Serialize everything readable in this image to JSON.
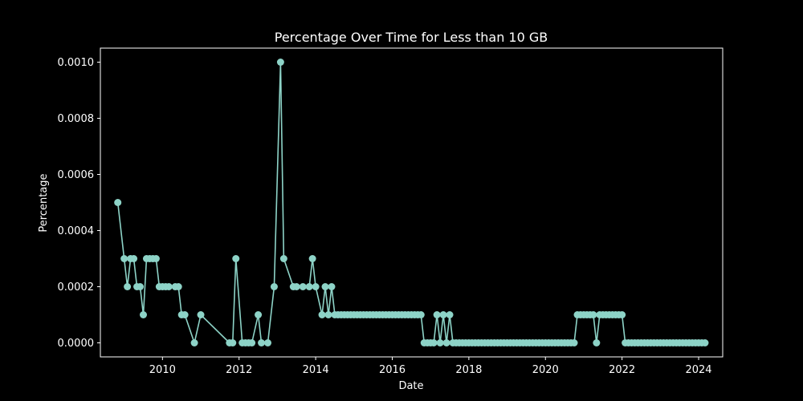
{
  "chart_data": {
    "type": "line",
    "title": "Percentage Over Time for Less than 10 GB",
    "xlabel": "Date",
    "ylabel": "Percentage",
    "xlim": [
      "2008-06-01",
      "2024-09-01"
    ],
    "ylim": [
      -5e-05,
      0.00105
    ],
    "x_ticks": [
      "2010",
      "2012",
      "2014",
      "2016",
      "2018",
      "2020",
      "2022",
      "2024"
    ],
    "y_ticks": [
      "0.0000",
      "0.0002",
      "0.0004",
      "0.0006",
      "0.0008",
      "0.0010"
    ],
    "grid": false,
    "legend": "none",
    "colors": {
      "background": "#000000",
      "foreground": "#ffffff",
      "line": "#8dd3c7"
    },
    "series": [
      {
        "x": [
          "2008-11",
          "2009-01",
          "2009-02",
          "2009-03",
          "2009-04",
          "2009-05",
          "2009-06",
          "2009-07",
          "2009-08",
          "2009-09",
          "2009-10",
          "2009-11",
          "2009-12",
          "2010-01",
          "2010-02",
          "2010-03",
          "2010-05",
          "2010-06",
          "2010-07",
          "2010-08",
          "2010-11",
          "2011-01",
          "2011-10",
          "2011-11",
          "2011-12",
          "2012-02",
          "2012-03",
          "2012-04",
          "2012-05",
          "2012-07",
          "2012-08",
          "2012-10",
          "2012-12",
          "2013-02",
          "2013-03",
          "2013-06",
          "2013-07",
          "2013-09",
          "2013-11",
          "2013-12",
          "2014-01",
          "2014-03",
          "2014-04",
          "2014-05",
          "2014-06",
          "2014-07",
          "2014-08",
          "2014-09",
          "2014-10",
          "2014-11",
          "2014-12",
          "2015-01",
          "2015-02",
          "2015-03",
          "2015-04",
          "2015-05",
          "2015-06",
          "2015-07",
          "2015-08",
          "2015-09",
          "2015-10",
          "2015-11",
          "2015-12",
          "2016-01",
          "2016-02",
          "2016-03",
          "2016-04",
          "2016-05",
          "2016-06",
          "2016-07",
          "2016-08",
          "2016-09",
          "2016-10",
          "2016-11",
          "2016-12",
          "2017-01",
          "2017-02",
          "2017-03",
          "2017-04",
          "2017-05",
          "2017-06",
          "2017-07",
          "2017-08",
          "2017-09",
          "2017-10",
          "2017-11",
          "2017-12",
          "2018-01",
          "2018-02",
          "2018-03",
          "2018-04",
          "2018-05",
          "2018-06",
          "2018-07",
          "2018-08",
          "2018-09",
          "2018-10",
          "2018-11",
          "2018-12",
          "2019-01",
          "2019-02",
          "2019-03",
          "2019-04",
          "2019-05",
          "2019-06",
          "2019-07",
          "2019-08",
          "2019-09",
          "2019-10",
          "2019-11",
          "2019-12",
          "2020-01",
          "2020-02",
          "2020-03",
          "2020-04",
          "2020-05",
          "2020-06",
          "2020-07",
          "2020-08",
          "2020-09",
          "2020-10",
          "2020-11",
          "2020-12",
          "2021-01",
          "2021-02",
          "2021-03",
          "2021-04",
          "2021-05",
          "2021-06",
          "2021-07",
          "2021-08",
          "2021-09",
          "2021-10",
          "2021-11",
          "2021-12",
          "2022-01",
          "2022-02",
          "2022-03",
          "2022-04",
          "2022-05",
          "2022-06",
          "2022-07",
          "2022-08",
          "2022-09",
          "2022-10",
          "2022-11",
          "2022-12",
          "2023-01",
          "2023-02",
          "2023-03",
          "2023-04",
          "2023-05",
          "2023-06",
          "2023-07",
          "2023-08",
          "2023-09",
          "2023-10",
          "2023-11",
          "2023-12",
          "2024-01",
          "2024-02",
          "2024-03"
        ],
        "y": [
          0.0005,
          0.0003,
          0.0002,
          0.0003,
          0.0003,
          0.0002,
          0.0002,
          0.0001,
          0.0003,
          0.0003,
          0.0003,
          0.0003,
          0.0002,
          0.0002,
          0.0002,
          0.0002,
          0.0002,
          0.0002,
          0.0001,
          0.0001,
          0.0,
          0.0001,
          0.0,
          0.0,
          0.0003,
          0.0,
          0.0,
          0.0,
          0.0,
          0.0001,
          0.0,
          0.0,
          0.0002,
          0.001,
          0.0003,
          0.0002,
          0.0002,
          0.0002,
          0.0002,
          0.0003,
          0.0002,
          0.0001,
          0.0002,
          0.0001,
          0.0002,
          0.0001,
          0.0001,
          0.0001,
          0.0001,
          0.0001,
          0.0001,
          0.0001,
          0.0001,
          0.0001,
          0.0001,
          0.0001,
          0.0001,
          0.0001,
          0.0001,
          0.0001,
          0.0001,
          0.0001,
          0.0001,
          0.0001,
          0.0001,
          0.0001,
          0.0001,
          0.0001,
          0.0001,
          0.0001,
          0.0001,
          0.0001,
          0.0001,
          0.0,
          0.0,
          0.0,
          0.0,
          0.0001,
          0.0,
          0.0001,
          0.0,
          0.0001,
          0.0,
          0.0,
          0.0,
          0.0,
          0.0,
          0.0,
          0.0,
          0.0,
          0.0,
          0.0,
          0.0,
          0.0,
          0.0,
          0.0,
          0.0,
          0.0,
          0.0,
          0.0,
          0.0,
          0.0,
          0.0,
          0.0,
          0.0,
          0.0,
          0.0,
          0.0,
          0.0,
          0.0,
          0.0,
          0.0,
          0.0,
          0.0,
          0.0,
          0.0,
          0.0,
          0.0,
          0.0,
          0.0,
          0.0,
          0.0001,
          0.0001,
          0.0001,
          0.0001,
          0.0001,
          0.0001,
          0.0,
          0.0001,
          0.0001,
          0.0001,
          0.0001,
          0.0001,
          0.0001,
          0.0001,
          0.0001,
          0.0,
          0.0,
          0.0,
          0.0,
          0.0,
          0.0,
          0.0,
          0.0,
          0.0,
          0.0,
          0.0,
          0.0,
          0.0,
          0.0,
          0.0,
          0.0,
          0.0,
          0.0,
          0.0,
          0.0,
          0.0,
          0.0,
          0.0,
          0.0,
          0.0,
          0.0
        ]
      }
    ]
  }
}
